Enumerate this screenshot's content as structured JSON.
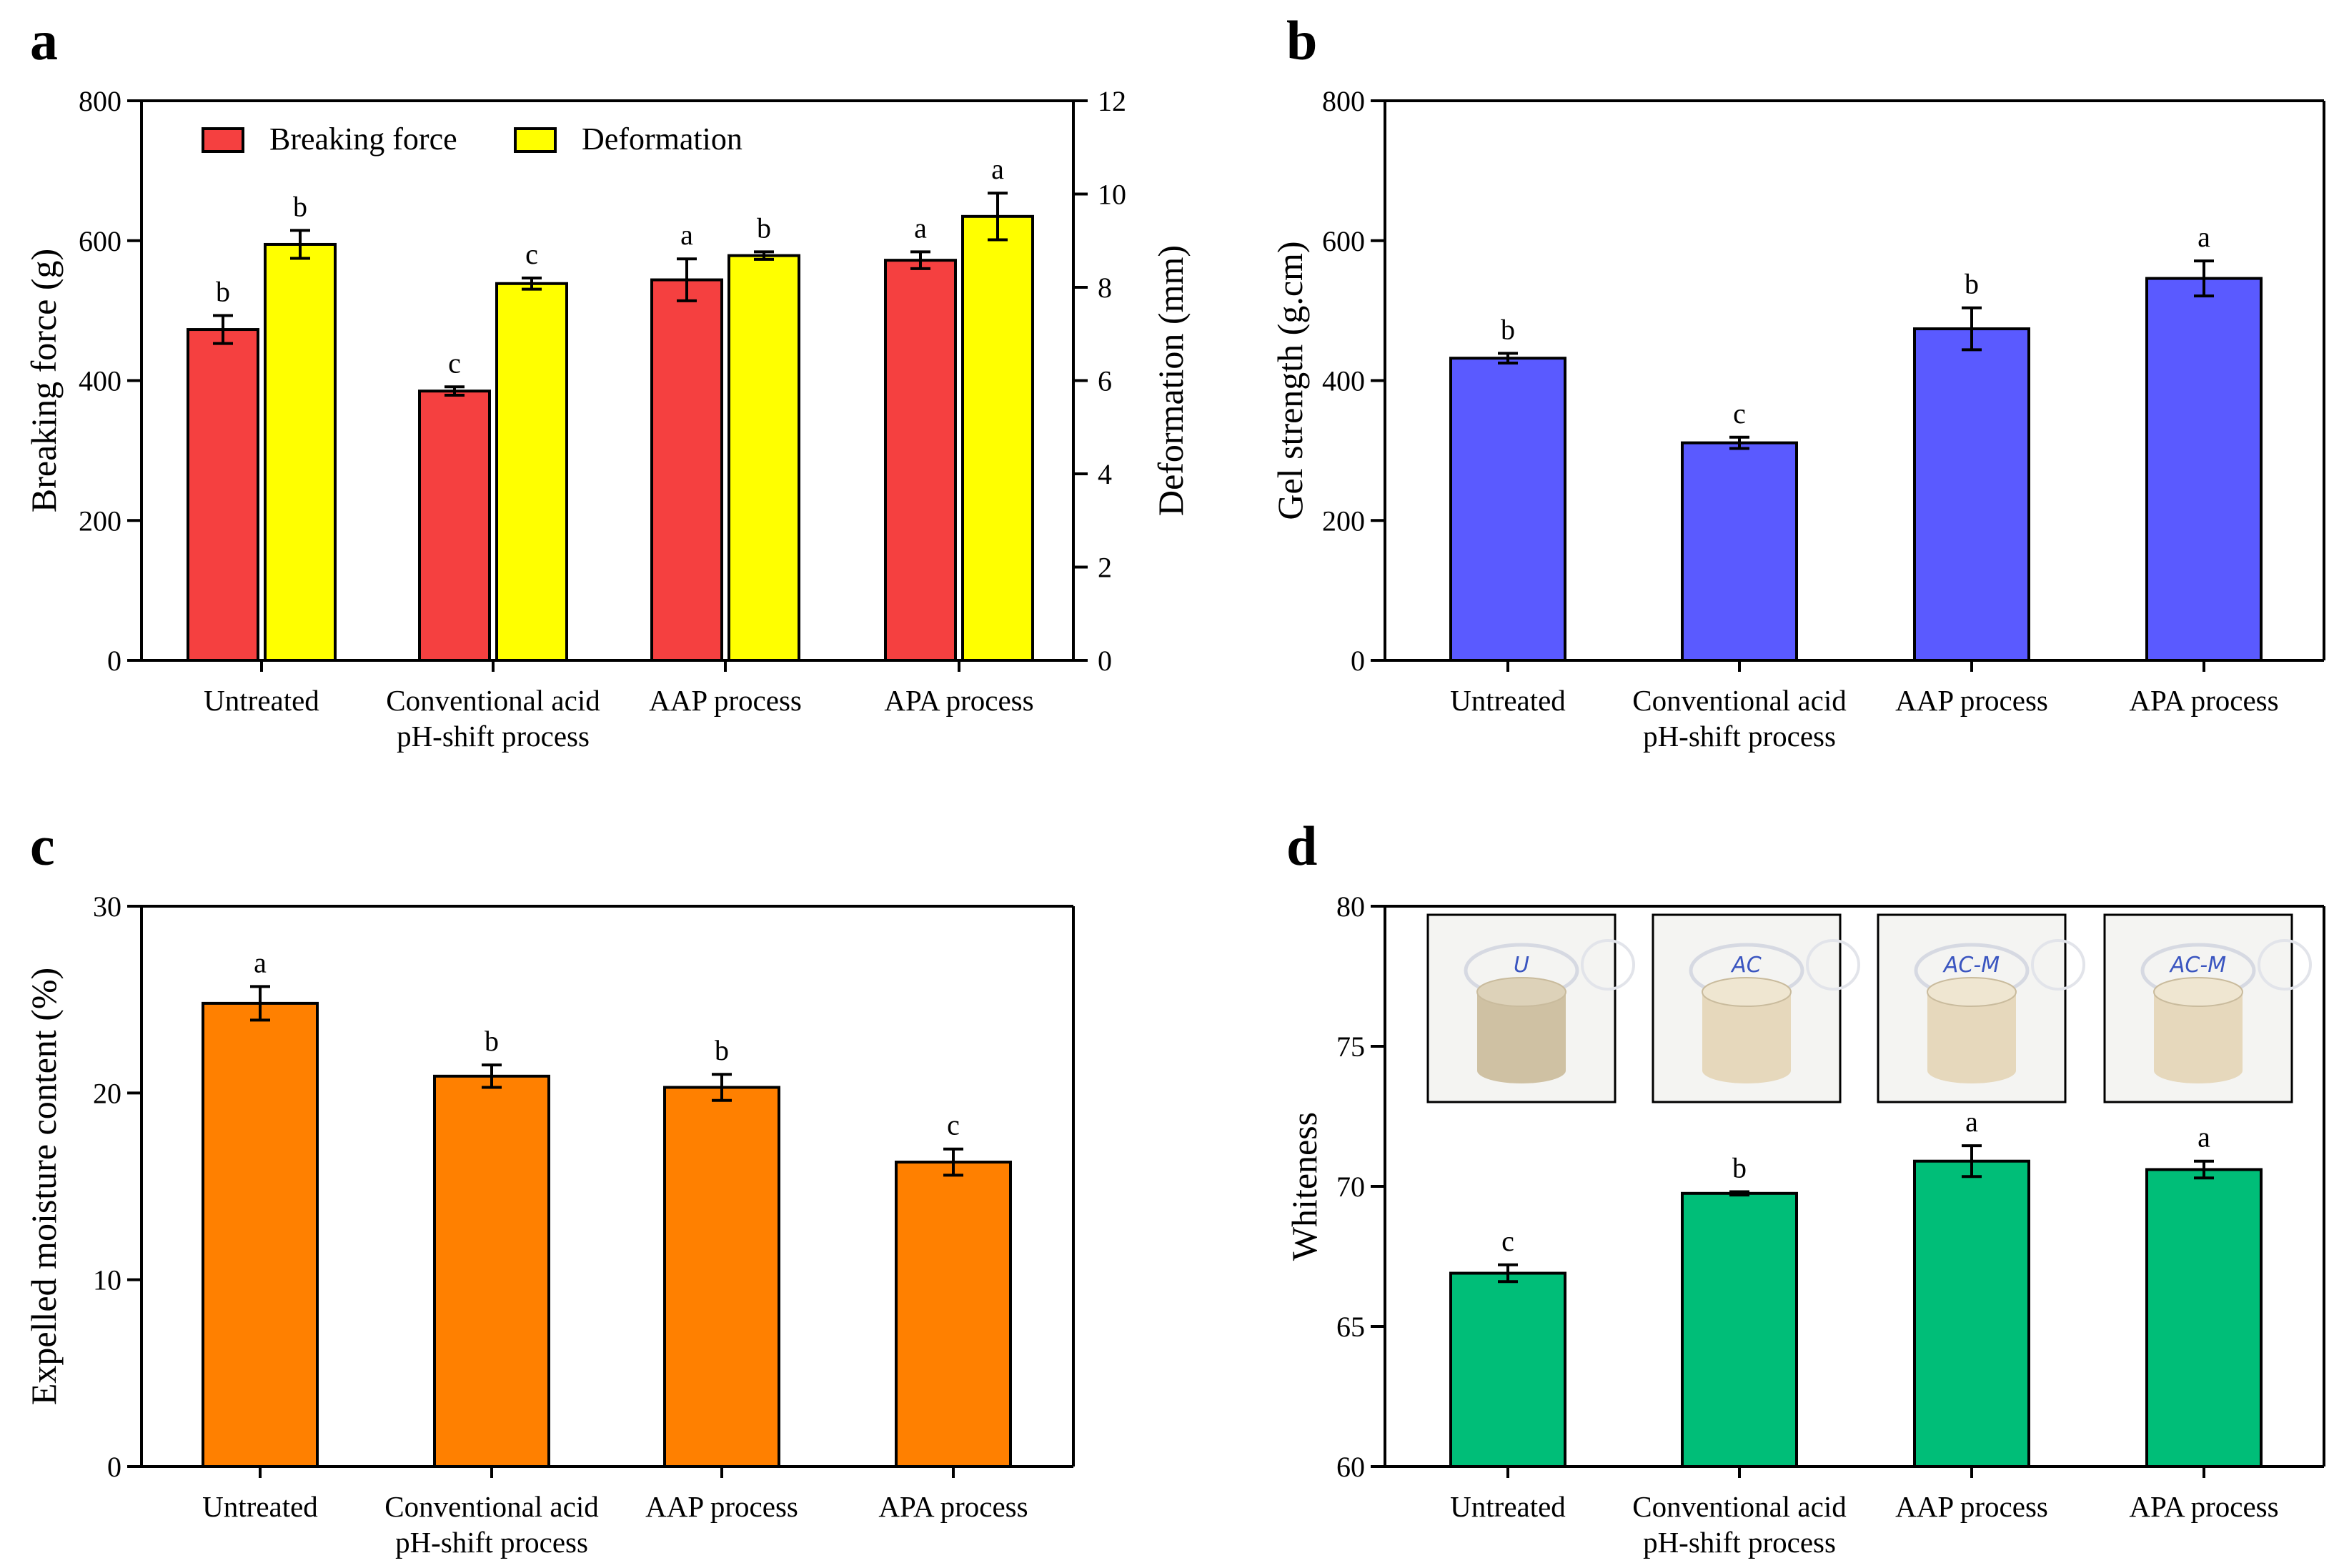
{
  "chart_data": [
    {
      "panel": "a",
      "type": "bar",
      "categories": [
        [
          "Untreated"
        ],
        [
          "Conventional acid",
          "pH-shift process"
        ],
        [
          "AAP process"
        ],
        [
          "APA process"
        ]
      ],
      "ylabel": "Breaking force (g)",
      "y2label": "Deformation (mm)",
      "ylim": [
        0,
        800
      ],
      "yticks": [
        0,
        200,
        400,
        600,
        800
      ],
      "y2lim": [
        0,
        12
      ],
      "y2ticks": [
        0,
        2,
        4,
        6,
        8,
        10,
        12
      ],
      "series": [
        {
          "name": "Breaking force",
          "axis": "left",
          "color": "#f54040",
          "values": [
            473,
            385,
            544,
            572
          ],
          "errors": [
            20,
            6,
            30,
            12
          ],
          "letters": [
            "b",
            "c",
            "a",
            "a"
          ]
        },
        {
          "name": "Deformation",
          "axis": "right",
          "color": "#ffff00",
          "values": [
            8.92,
            8.08,
            8.68,
            9.52
          ],
          "errors": [
            0.3,
            0.12,
            0.08,
            0.5
          ],
          "letters": [
            "b",
            "c",
            "b",
            "a"
          ]
        }
      ]
    },
    {
      "panel": "b",
      "type": "bar",
      "categories": [
        [
          "Untreated"
        ],
        [
          "Conventional acid",
          "pH-shift process"
        ],
        [
          "AAP process"
        ],
        [
          "APA process"
        ]
      ],
      "ylabel": "Gel strength (g.cm)",
      "ylim": [
        0,
        800
      ],
      "yticks": [
        0,
        200,
        400,
        600,
        800
      ],
      "series": [
        {
          "name": "Gel strength",
          "color": "#5a5aff",
          "values": [
            432,
            311,
            474,
            546
          ],
          "errors": [
            7,
            8,
            30,
            25
          ],
          "letters": [
            "b",
            "c",
            "b",
            "a"
          ]
        }
      ]
    },
    {
      "panel": "c",
      "type": "bar",
      "categories": [
        [
          "Untreated"
        ],
        [
          "Conventional acid",
          "pH-shift process"
        ],
        [
          "AAP process"
        ],
        [
          "APA process"
        ]
      ],
      "ylabel": "Expelled moisture content (%)",
      "ylim": [
        0,
        30
      ],
      "yticks": [
        0,
        10,
        20,
        30
      ],
      "series": [
        {
          "name": "Expelled moisture content",
          "color": "#ff8000",
          "values": [
            24.8,
            20.9,
            20.3,
            16.3
          ],
          "errors": [
            0.9,
            0.6,
            0.7,
            0.7
          ],
          "letters": [
            "a",
            "b",
            "b",
            "c"
          ]
        }
      ]
    },
    {
      "panel": "d",
      "type": "bar",
      "categories": [
        [
          "Untreated"
        ],
        [
          "Conventional acid",
          "pH-shift process"
        ],
        [
          "AAP process"
        ],
        [
          "APA process"
        ]
      ],
      "ylabel": "Whiteness",
      "ylim": [
        60,
        80
      ],
      "yticks": [
        60,
        65,
        70,
        75,
        80
      ],
      "photo_labels": [
        "U",
        "AC",
        "AC-M",
        "AC-M"
      ],
      "series": [
        {
          "name": "Whiteness",
          "color": "#00be78",
          "values": [
            66.9,
            69.75,
            70.9,
            70.6
          ],
          "errors": [
            0.3,
            0.06,
            0.55,
            0.3
          ],
          "letters": [
            "c",
            "b",
            "a",
            "a"
          ]
        }
      ]
    }
  ]
}
